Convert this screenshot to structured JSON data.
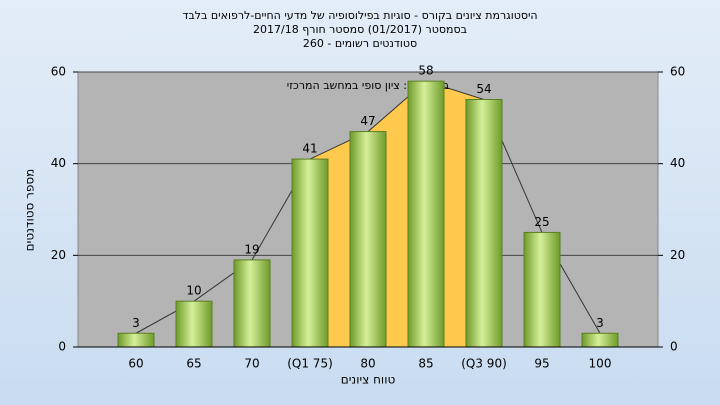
{
  "chart_data": {
    "type": "bar",
    "title": [
      "היסטוגרמת ציונים בקורס - סוגיות בפילוסופיה של מדעי החיים-לרפואים בלבד",
      "בסמסטר  (01/2017)  סמסטר חורף 2017/18",
      "סטודנטים רשומים - 260"
    ],
    "annotation": "במשימה : ציון סופי במחשב המרכזי",
    "x_label": "טווח ציונים",
    "y_label": "מספר סטודנטים",
    "categories": [
      "60",
      "65",
      "70",
      "(Q1 75)",
      "80",
      "85",
      "(Q3 90)",
      "95",
      "100"
    ],
    "values": [
      3,
      10,
      19,
      41,
      47,
      58,
      54,
      25,
      3
    ],
    "color": "#8cbf3f",
    "ylim": [
      0,
      60
    ],
    "yticks": [
      0,
      20,
      40,
      60
    ],
    "y2lim": [
      0,
      60
    ],
    "y2ticks": [
      0,
      20,
      40,
      60
    ],
    "grid": true
  }
}
